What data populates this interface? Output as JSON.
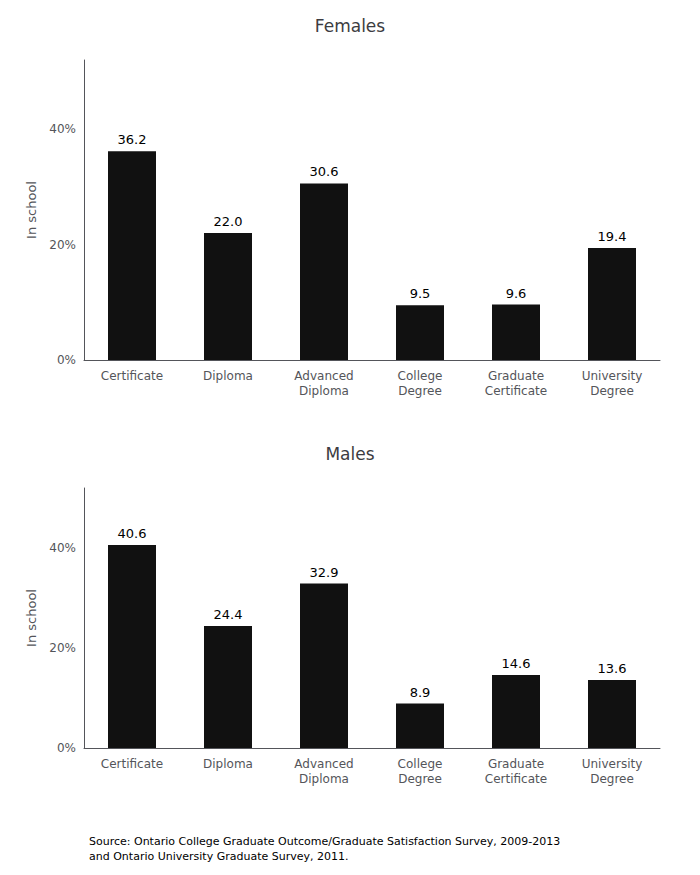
{
  "chart_data": [
    {
      "type": "bar",
      "title": "Females",
      "ylabel": "In school",
      "categories": [
        "Certificate",
        "Diploma",
        "Advanced\nDiploma",
        "College\nDegree",
        "Graduate\nCertificate",
        "University\nDegree"
      ],
      "values": [
        36.2,
        22.0,
        30.6,
        9.5,
        9.6,
        19.4
      ],
      "value_labels": [
        "36.2",
        "22.0",
        "30.6",
        "9.5",
        "9.6",
        "19.4"
      ],
      "color": "#111111",
      "ylim": [
        0,
        52
      ],
      "yticks": [
        {
          "value": 0,
          "label": "0%"
        },
        {
          "value": 20,
          "label": "20%"
        },
        {
          "value": 40,
          "label": "40%"
        }
      ],
      "grid": false,
      "data_labels": true
    },
    {
      "type": "bar",
      "title": "Males",
      "ylabel": "In school",
      "categories": [
        "Certificate",
        "Diploma",
        "Advanced\nDiploma",
        "College\nDegree",
        "Graduate\nCertificate",
        "University\nDegree"
      ],
      "values": [
        40.6,
        24.4,
        32.9,
        8.9,
        14.6,
        13.6
      ],
      "value_labels": [
        "40.6",
        "24.4",
        "32.9",
        "8.9",
        "14.6",
        "13.6"
      ],
      "color": "#111111",
      "ylim": [
        0,
        52
      ],
      "yticks": [
        {
          "value": 0,
          "label": "0%"
        },
        {
          "value": 20,
          "label": "20%"
        },
        {
          "value": 40,
          "label": "40%"
        }
      ],
      "grid": false,
      "data_labels": true,
      "annotation": "Source: Ontario College Graduate Outcome/Graduate Satisfaction Survey, 2009-2013\nand Ontario University Graduate Survey, 2011."
    }
  ]
}
